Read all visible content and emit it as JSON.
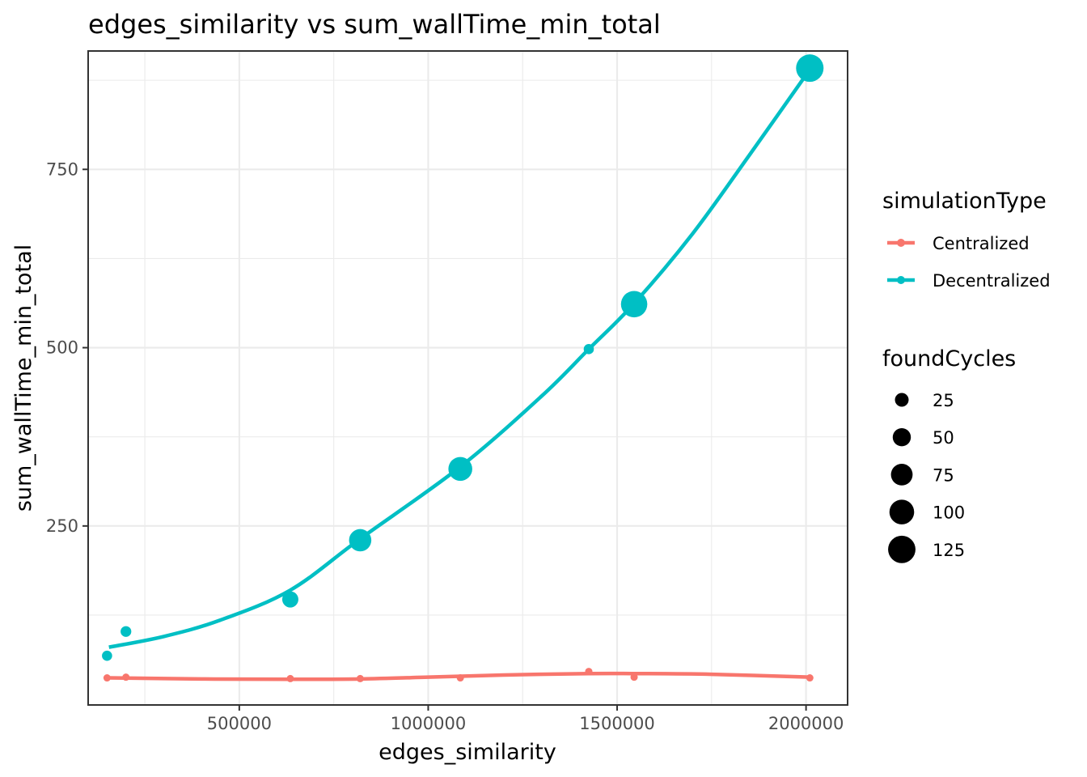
{
  "chart_data": {
    "type": "scatter",
    "title": "edges_similarity  vs  sum_wallTime_min_total",
    "xlabel": "edges_similarity",
    "ylabel": "sum_wallTime_min_total",
    "xlim": [
      100000,
      2110000
    ],
    "ylim": [
      -1,
      916
    ],
    "x_ticks": [
      500000,
      1000000,
      1500000,
      2000000
    ],
    "x_tick_labels": [
      "500000",
      "1000000",
      "1500000",
      "2000000"
    ],
    "y_ticks": [
      250,
      500,
      750
    ],
    "y_tick_labels": [
      "250",
      "500",
      "750"
    ],
    "grid": true,
    "legend_position": "right",
    "color_legend": {
      "title": "simulationType",
      "entries": [
        {
          "label": "Centralized",
          "color": "#F8766D"
        },
        {
          "label": "Decentralized",
          "color": "#00BFC4"
        }
      ]
    },
    "size_legend": {
      "title": "foundCycles",
      "values": [
        25,
        50,
        75,
        100,
        125
      ],
      "labels": [
        "25",
        "50",
        "75",
        "100",
        "125"
      ]
    },
    "series": [
      {
        "name": "Centralized",
        "color": "#F8766D",
        "points": [
          {
            "x": 150000,
            "y": 37,
            "size": 1
          },
          {
            "x": 200000,
            "y": 38,
            "size": 1
          },
          {
            "x": 635000,
            "y": 36,
            "size": 1
          },
          {
            "x": 820000,
            "y": 36,
            "size": 1
          },
          {
            "x": 1085000,
            "y": 37,
            "size": 1
          },
          {
            "x": 1425000,
            "y": 46,
            "size": 1
          },
          {
            "x": 1545000,
            "y": 38,
            "size": 1
          },
          {
            "x": 2010000,
            "y": 37,
            "size": 1
          }
        ],
        "smooth": [
          [
            155000,
            37
          ],
          [
            400000,
            35.5
          ],
          [
            630000,
            35
          ],
          [
            820000,
            35.5
          ],
          [
            1000000,
            38
          ],
          [
            1200000,
            41
          ],
          [
            1425000,
            43
          ],
          [
            1545000,
            43
          ],
          [
            1750000,
            42
          ],
          [
            2010000,
            38
          ]
        ]
      },
      {
        "name": "Decentralized",
        "color": "#00BFC4",
        "points": [
          {
            "x": 150000,
            "y": 68,
            "size": 10
          },
          {
            "x": 200000,
            "y": 102,
            "size": 12
          },
          {
            "x": 635000,
            "y": 147,
            "size": 38
          },
          {
            "x": 820000,
            "y": 230,
            "size": 80
          },
          {
            "x": 1085000,
            "y": 330,
            "size": 93
          },
          {
            "x": 1425000,
            "y": 498,
            "size": 10
          },
          {
            "x": 1545000,
            "y": 561,
            "size": 115
          },
          {
            "x": 2010000,
            "y": 892,
            "size": 126
          }
        ],
        "smooth": [
          [
            155000,
            80
          ],
          [
            300000,
            95
          ],
          [
            450000,
            118
          ],
          [
            635000,
            160
          ],
          [
            820000,
            232
          ],
          [
            1085000,
            333
          ],
          [
            1300000,
            432
          ],
          [
            1425000,
            498
          ],
          [
            1545000,
            562
          ],
          [
            1700000,
            660
          ],
          [
            1850000,
            770
          ],
          [
            2010000,
            890
          ]
        ]
      }
    ]
  }
}
